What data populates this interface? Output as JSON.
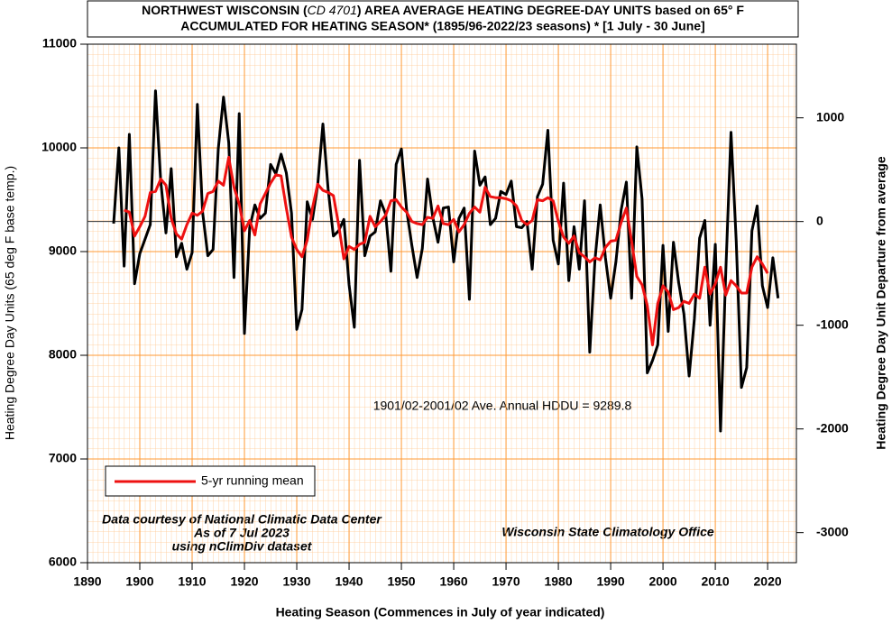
{
  "chart_data": {
    "type": "line",
    "title": [
      "NORTHWEST WISCONSIN (",
      "CD 4701",
      ") AREA AVERAGE HEATING DEGREE-DAY UNITS based on 65° F"
    ],
    "subtitle": "ACCUMULATED FOR HEATING SEASON*  (1895/96-2022/23 seasons) * [1 July - 30 June]",
    "x_label": "Heating Season (Commences in July of year indicated)",
    "y_label": "Heating Degree Day Units (65 deg F base temp.)",
    "y2_label": "Heating Degree Day Unit Departure from average",
    "average": 9289.8,
    "average_label": "1901/02-2001/02 Ave. Annual HDDU = 9289.8",
    "credits": [
      "Data courtesy of National Climatic Data Center",
      "As of 7 Jul 2023",
      "using nClimDiv dataset"
    ],
    "source": "Wisconsin State Climatology Office",
    "legend": "lower left",
    "grid": true,
    "x": [
      1895,
      1896,
      1897,
      1898,
      1899,
      1900,
      1901,
      1902,
      1903,
      1904,
      1905,
      1906,
      1907,
      1908,
      1909,
      1910,
      1911,
      1912,
      1913,
      1914,
      1915,
      1916,
      1917,
      1918,
      1919,
      1920,
      1921,
      1922,
      1923,
      1924,
      1925,
      1926,
      1927,
      1928,
      1929,
      1930,
      1931,
      1932,
      1933,
      1934,
      1935,
      1936,
      1937,
      1938,
      1939,
      1940,
      1941,
      1942,
      1943,
      1944,
      1945,
      1946,
      1947,
      1948,
      1949,
      1950,
      1951,
      1952,
      1953,
      1954,
      1955,
      1956,
      1957,
      1958,
      1959,
      1960,
      1961,
      1962,
      1963,
      1964,
      1965,
      1966,
      1967,
      1968,
      1969,
      1970,
      1971,
      1972,
      1973,
      1974,
      1975,
      1976,
      1977,
      1978,
      1979,
      1980,
      1981,
      1982,
      1983,
      1984,
      1985,
      1986,
      1987,
      1988,
      1989,
      1990,
      1991,
      1992,
      1993,
      1994,
      1995,
      1996,
      1997,
      1998,
      1999,
      2000,
      2001,
      2002,
      2003,
      2004,
      2005,
      2006,
      2007,
      2008,
      2009,
      2010,
      2011,
      2012,
      2013,
      2014,
      2015,
      2016,
      2017,
      2018,
      2019,
      2020,
      2021,
      2022
    ],
    "series": [
      {
        "color": "#000000",
        "values": [
          9270,
          10000,
          8860,
          10130,
          8690,
          8980,
          9120,
          9260,
          10550,
          9680,
          9180,
          9800,
          8950,
          9080,
          8830,
          8990,
          10420,
          9380,
          8960,
          9020,
          9990,
          10490,
          10050,
          8750,
          10330,
          8210,
          9230,
          9450,
          9320,
          9370,
          9840,
          9750,
          9940,
          9760,
          9370,
          8250,
          8440,
          9480,
          9310,
          9640,
          10230,
          9600,
          9150,
          9200,
          9310,
          8680,
          8270,
          9880,
          8960,
          9150,
          9190,
          9490,
          9360,
          8810,
          9840,
          9990,
          9400,
          9060,
          8750,
          9030,
          9700,
          9330,
          9090,
          9420,
          9430,
          8900,
          9320,
          9420,
          8540,
          9970,
          9640,
          9720,
          9260,
          9320,
          9580,
          9550,
          9680,
          9240,
          9230,
          9290,
          8830,
          9530,
          9650,
          10170,
          9110,
          8880,
          9660,
          8720,
          9240,
          8830,
          9490,
          8030,
          8920,
          9450,
          8940,
          8550,
          8900,
          9400,
          9670,
          8550,
          10010,
          9510,
          7830,
          7950,
          8100,
          9060,
          8230,
          9090,
          8700,
          8400,
          7800,
          8350,
          9130,
          9300,
          8290,
          9070,
          7270,
          8800,
          10150,
          9100,
          7690,
          7880,
          9200,
          9440,
          8670,
          8460,
          8940,
          8550
        ]
      },
      {
        "name": "5-yr running mean",
        "color": "#ee1111",
        "values": [
          null,
          null,
          9400,
          9380,
          9150,
          9240,
          9340,
          9570,
          9580,
          9700,
          9640,
          9320,
          9170,
          9120,
          9260,
          9370,
          9350,
          9390,
          9560,
          9580,
          9680,
          9640,
          9910,
          9620,
          9460,
          9200,
          9300,
          9160,
          9460,
          9560,
          9660,
          9740,
          9730,
          9420,
          9140,
          9020,
          8950,
          9110,
          9420,
          9650,
          9590,
          9570,
          9540,
          9260,
          8930,
          9050,
          9020,
          9070,
          9090,
          9340,
          9240,
          9290,
          9350,
          9490,
          9500,
          9430,
          9380,
          9290,
          9270,
          9260,
          9330,
          9320,
          9440,
          9270,
          9260,
          9310,
          9190,
          9260,
          9370,
          9430,
          9380,
          9620,
          9530,
          9520,
          9520,
          9510,
          9490,
          9440,
          9300,
          9260,
          9300,
          9500,
          9490,
          9520,
          9490,
          9290,
          9140,
          9080,
          9150,
          8990,
          8950,
          8900,
          8940,
          8920,
          9040,
          9100,
          9110,
          9280,
          9420,
          9100,
          8760,
          8680,
          8480,
          8100,
          8500,
          8670,
          8610,
          8440,
          8460,
          8520,
          8500,
          8590,
          8550,
          8850,
          8590,
          8690,
          8850,
          8580,
          8720,
          8670,
          8600,
          8600,
          8850,
          8950,
          8880,
          8790,
          null,
          null
        ]
      }
    ],
    "xlim": [
      1890,
      2025.5
    ],
    "xticks": [
      1890,
      1900,
      1910,
      1920,
      1930,
      1940,
      1950,
      1960,
      1970,
      1980,
      1990,
      2000,
      2010,
      2020
    ],
    "ylim": [
      6000,
      11000
    ],
    "yticks": [
      6000,
      7000,
      8000,
      9000,
      10000,
      11000
    ],
    "y2lim": [
      -3289.8,
      1710.2
    ],
    "y2ticks": [
      -3000,
      -2000,
      -1000,
      0,
      1000
    ]
  }
}
